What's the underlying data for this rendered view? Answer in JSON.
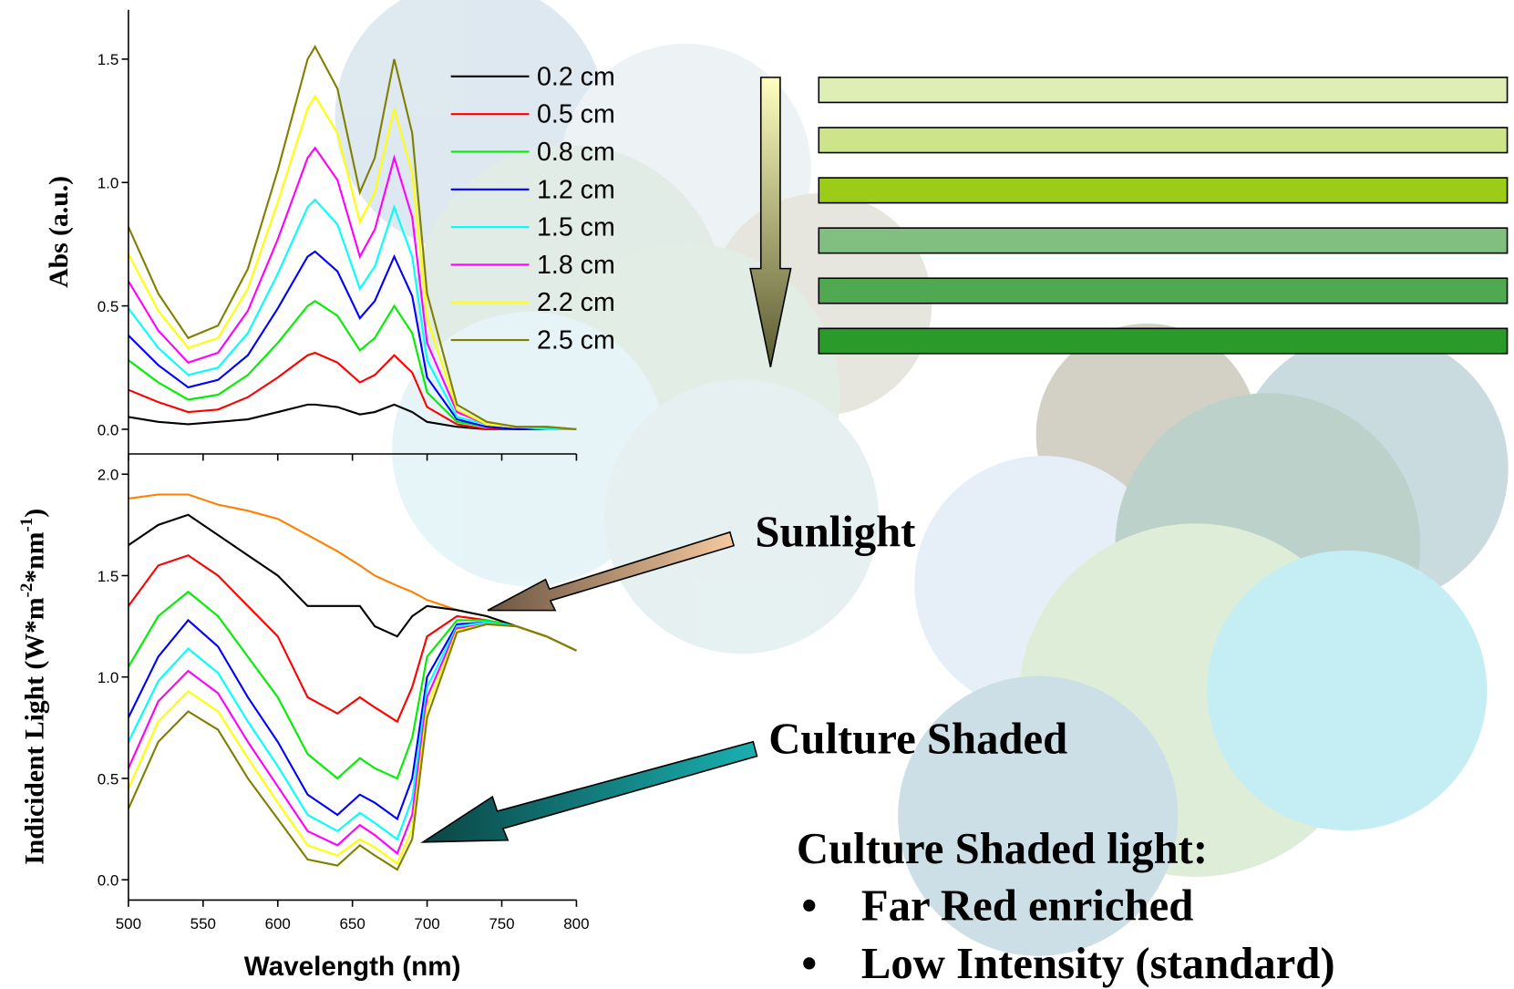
{
  "chart_data": [
    {
      "type": "line",
      "y_label": "Abs (a.u.)",
      "x": [
        500,
        520,
        540,
        560,
        580,
        600,
        620,
        625,
        640,
        655,
        665,
        678,
        690,
        700,
        720,
        740,
        760,
        780,
        800
      ],
      "xlim": [
        500,
        800
      ],
      "xticks": [
        500,
        550,
        600,
        650,
        700,
        750,
        800
      ],
      "ylim": [
        -0.1,
        1.7
      ],
      "yticks": [
        {
          "value": 0,
          "label": "0.0"
        },
        0.5,
        {
          "value": 1,
          "label": "1.0"
        },
        1.5
      ],
      "series": [
        {
          "name": "0.2 cm",
          "color": "#000000",
          "values": [
            0.05,
            0.03,
            0.02,
            0.03,
            0.04,
            0.07,
            0.1,
            0.1,
            0.09,
            0.06,
            0.07,
            0.1,
            0.07,
            0.03,
            0.01,
            0,
            0,
            0,
            0
          ]
        },
        {
          "name": "0.5 cm",
          "color": "#ff0000",
          "values": [
            0.16,
            0.11,
            0.07,
            0.08,
            0.13,
            0.21,
            0.3,
            0.31,
            0.27,
            0.19,
            0.22,
            0.3,
            0.23,
            0.09,
            0.02,
            0,
            0,
            0,
            0
          ]
        },
        {
          "name": "0.8 cm",
          "color": "#00ee00",
          "values": [
            0.28,
            0.19,
            0.12,
            0.14,
            0.22,
            0.35,
            0.5,
            0.52,
            0.46,
            0.32,
            0.37,
            0.5,
            0.39,
            0.15,
            0.03,
            0.01,
            0,
            0,
            0
          ]
        },
        {
          "name": "1.2 cm",
          "color": "#0000ff",
          "values": [
            0.38,
            0.26,
            0.17,
            0.2,
            0.3,
            0.49,
            0.7,
            0.72,
            0.64,
            0.45,
            0.52,
            0.7,
            0.54,
            0.21,
            0.04,
            0.01,
            0,
            0,
            0
          ]
        },
        {
          "name": "1.5 cm",
          "color": "#00ffff",
          "values": [
            0.49,
            0.33,
            0.22,
            0.25,
            0.39,
            0.63,
            0.9,
            0.93,
            0.83,
            0.57,
            0.66,
            0.9,
            0.7,
            0.28,
            0.05,
            0.02,
            0.01,
            0,
            0
          ]
        },
        {
          "name": "1.8 cm",
          "color": "#ff00ff",
          "values": [
            0.6,
            0.4,
            0.27,
            0.31,
            0.48,
            0.77,
            1.1,
            1.14,
            1.01,
            0.7,
            0.81,
            1.1,
            0.86,
            0.35,
            0.07,
            0.02,
            0.01,
            0.01,
            0
          ]
        },
        {
          "name": "2.2 cm",
          "color": "#ffff00",
          "values": [
            0.71,
            0.48,
            0.33,
            0.37,
            0.57,
            0.92,
            1.3,
            1.35,
            1.2,
            0.84,
            0.96,
            1.3,
            1.04,
            0.45,
            0.08,
            0.02,
            0.01,
            0.01,
            0
          ]
        },
        {
          "name": "2.5 cm",
          "color": "#808000",
          "values": [
            0.82,
            0.55,
            0.37,
            0.42,
            0.65,
            1.05,
            1.5,
            1.55,
            1.38,
            0.96,
            1.1,
            1.5,
            1.2,
            0.55,
            0.1,
            0.03,
            0.01,
            0.01,
            0
          ]
        }
      ]
    },
    {
      "type": "line",
      "x_label": "Wavelength (nm)",
      "y_label": [
        "Indicident Light (W*m",
        "-2",
        "*nm",
        "-1",
        ")"
      ],
      "x": [
        500,
        520,
        540,
        560,
        580,
        600,
        620,
        640,
        655,
        665,
        680,
        690,
        700,
        720,
        740,
        760,
        780,
        800
      ],
      "xlim": [
        500,
        800
      ],
      "xticks": [
        500,
        550,
        600,
        650,
        700,
        750,
        800
      ],
      "ylim": [
        -0.1,
        2.1
      ],
      "yticks": [
        {
          "value": 0,
          "label": "0.0"
        },
        0.5,
        {
          "value": 1,
          "label": "1.0"
        },
        1.5,
        {
          "value": 2,
          "label": "2.0"
        }
      ],
      "series": [
        {
          "color": "#ff8000",
          "values": [
            1.88,
            1.9,
            1.9,
            1.85,
            1.82,
            1.78,
            1.7,
            1.62,
            1.55,
            1.5,
            1.45,
            1.42,
            1.38,
            1.33,
            1.3,
            1.25,
            1.2,
            1.13
          ]
        },
        {
          "color": "#000000",
          "values": [
            1.65,
            1.75,
            1.8,
            1.7,
            1.6,
            1.5,
            1.35,
            1.35,
            1.35,
            1.25,
            1.2,
            1.3,
            1.35,
            1.33,
            1.3,
            1.25,
            1.2,
            1.13
          ]
        },
        {
          "color": "#ff0000",
          "values": [
            1.35,
            1.55,
            1.6,
            1.5,
            1.35,
            1.2,
            0.9,
            0.82,
            0.9,
            0.85,
            0.78,
            0.95,
            1.2,
            1.3,
            1.28,
            1.25,
            1.2,
            1.13
          ]
        },
        {
          "color": "#00ee00",
          "values": [
            1.05,
            1.3,
            1.42,
            1.3,
            1.1,
            0.9,
            0.62,
            0.5,
            0.6,
            0.55,
            0.5,
            0.7,
            1.1,
            1.28,
            1.28,
            1.25,
            1.2,
            1.13
          ]
        },
        {
          "color": "#0000ff",
          "values": [
            0.8,
            1.1,
            1.28,
            1.15,
            0.9,
            0.68,
            0.42,
            0.32,
            0.42,
            0.38,
            0.3,
            0.5,
            1.0,
            1.26,
            1.27,
            1.25,
            1.2,
            1.13
          ]
        },
        {
          "color": "#00ffff",
          "values": [
            0.68,
            0.98,
            1.14,
            1.02,
            0.78,
            0.56,
            0.32,
            0.24,
            0.33,
            0.28,
            0.2,
            0.4,
            0.95,
            1.25,
            1.27,
            1.25,
            1.2,
            1.13
          ]
        },
        {
          "color": "#ff00ff",
          "values": [
            0.55,
            0.88,
            1.03,
            0.92,
            0.68,
            0.46,
            0.24,
            0.17,
            0.27,
            0.22,
            0.13,
            0.32,
            0.9,
            1.24,
            1.26,
            1.25,
            1.2,
            1.13
          ]
        },
        {
          "color": "#ffff00",
          "values": [
            0.45,
            0.78,
            0.93,
            0.83,
            0.6,
            0.38,
            0.17,
            0.12,
            0.2,
            0.16,
            0.08,
            0.25,
            0.85,
            1.23,
            1.26,
            1.25,
            1.2,
            1.13
          ]
        },
        {
          "color": "#808000",
          "values": [
            0.35,
            0.68,
            0.83,
            0.74,
            0.5,
            0.3,
            0.1,
            0.07,
            0.17,
            0.12,
            0.05,
            0.2,
            0.8,
            1.22,
            1.26,
            1.25,
            1.2,
            1.13
          ]
        }
      ]
    }
  ],
  "annotations": {
    "sunlight": "Sunlight",
    "culture_shaded": "Culture Shaded",
    "summary_title": "Culture Shaded light:",
    "bullets": [
      "Far Red enriched",
      "Low Intensity (standard)"
    ]
  }
}
